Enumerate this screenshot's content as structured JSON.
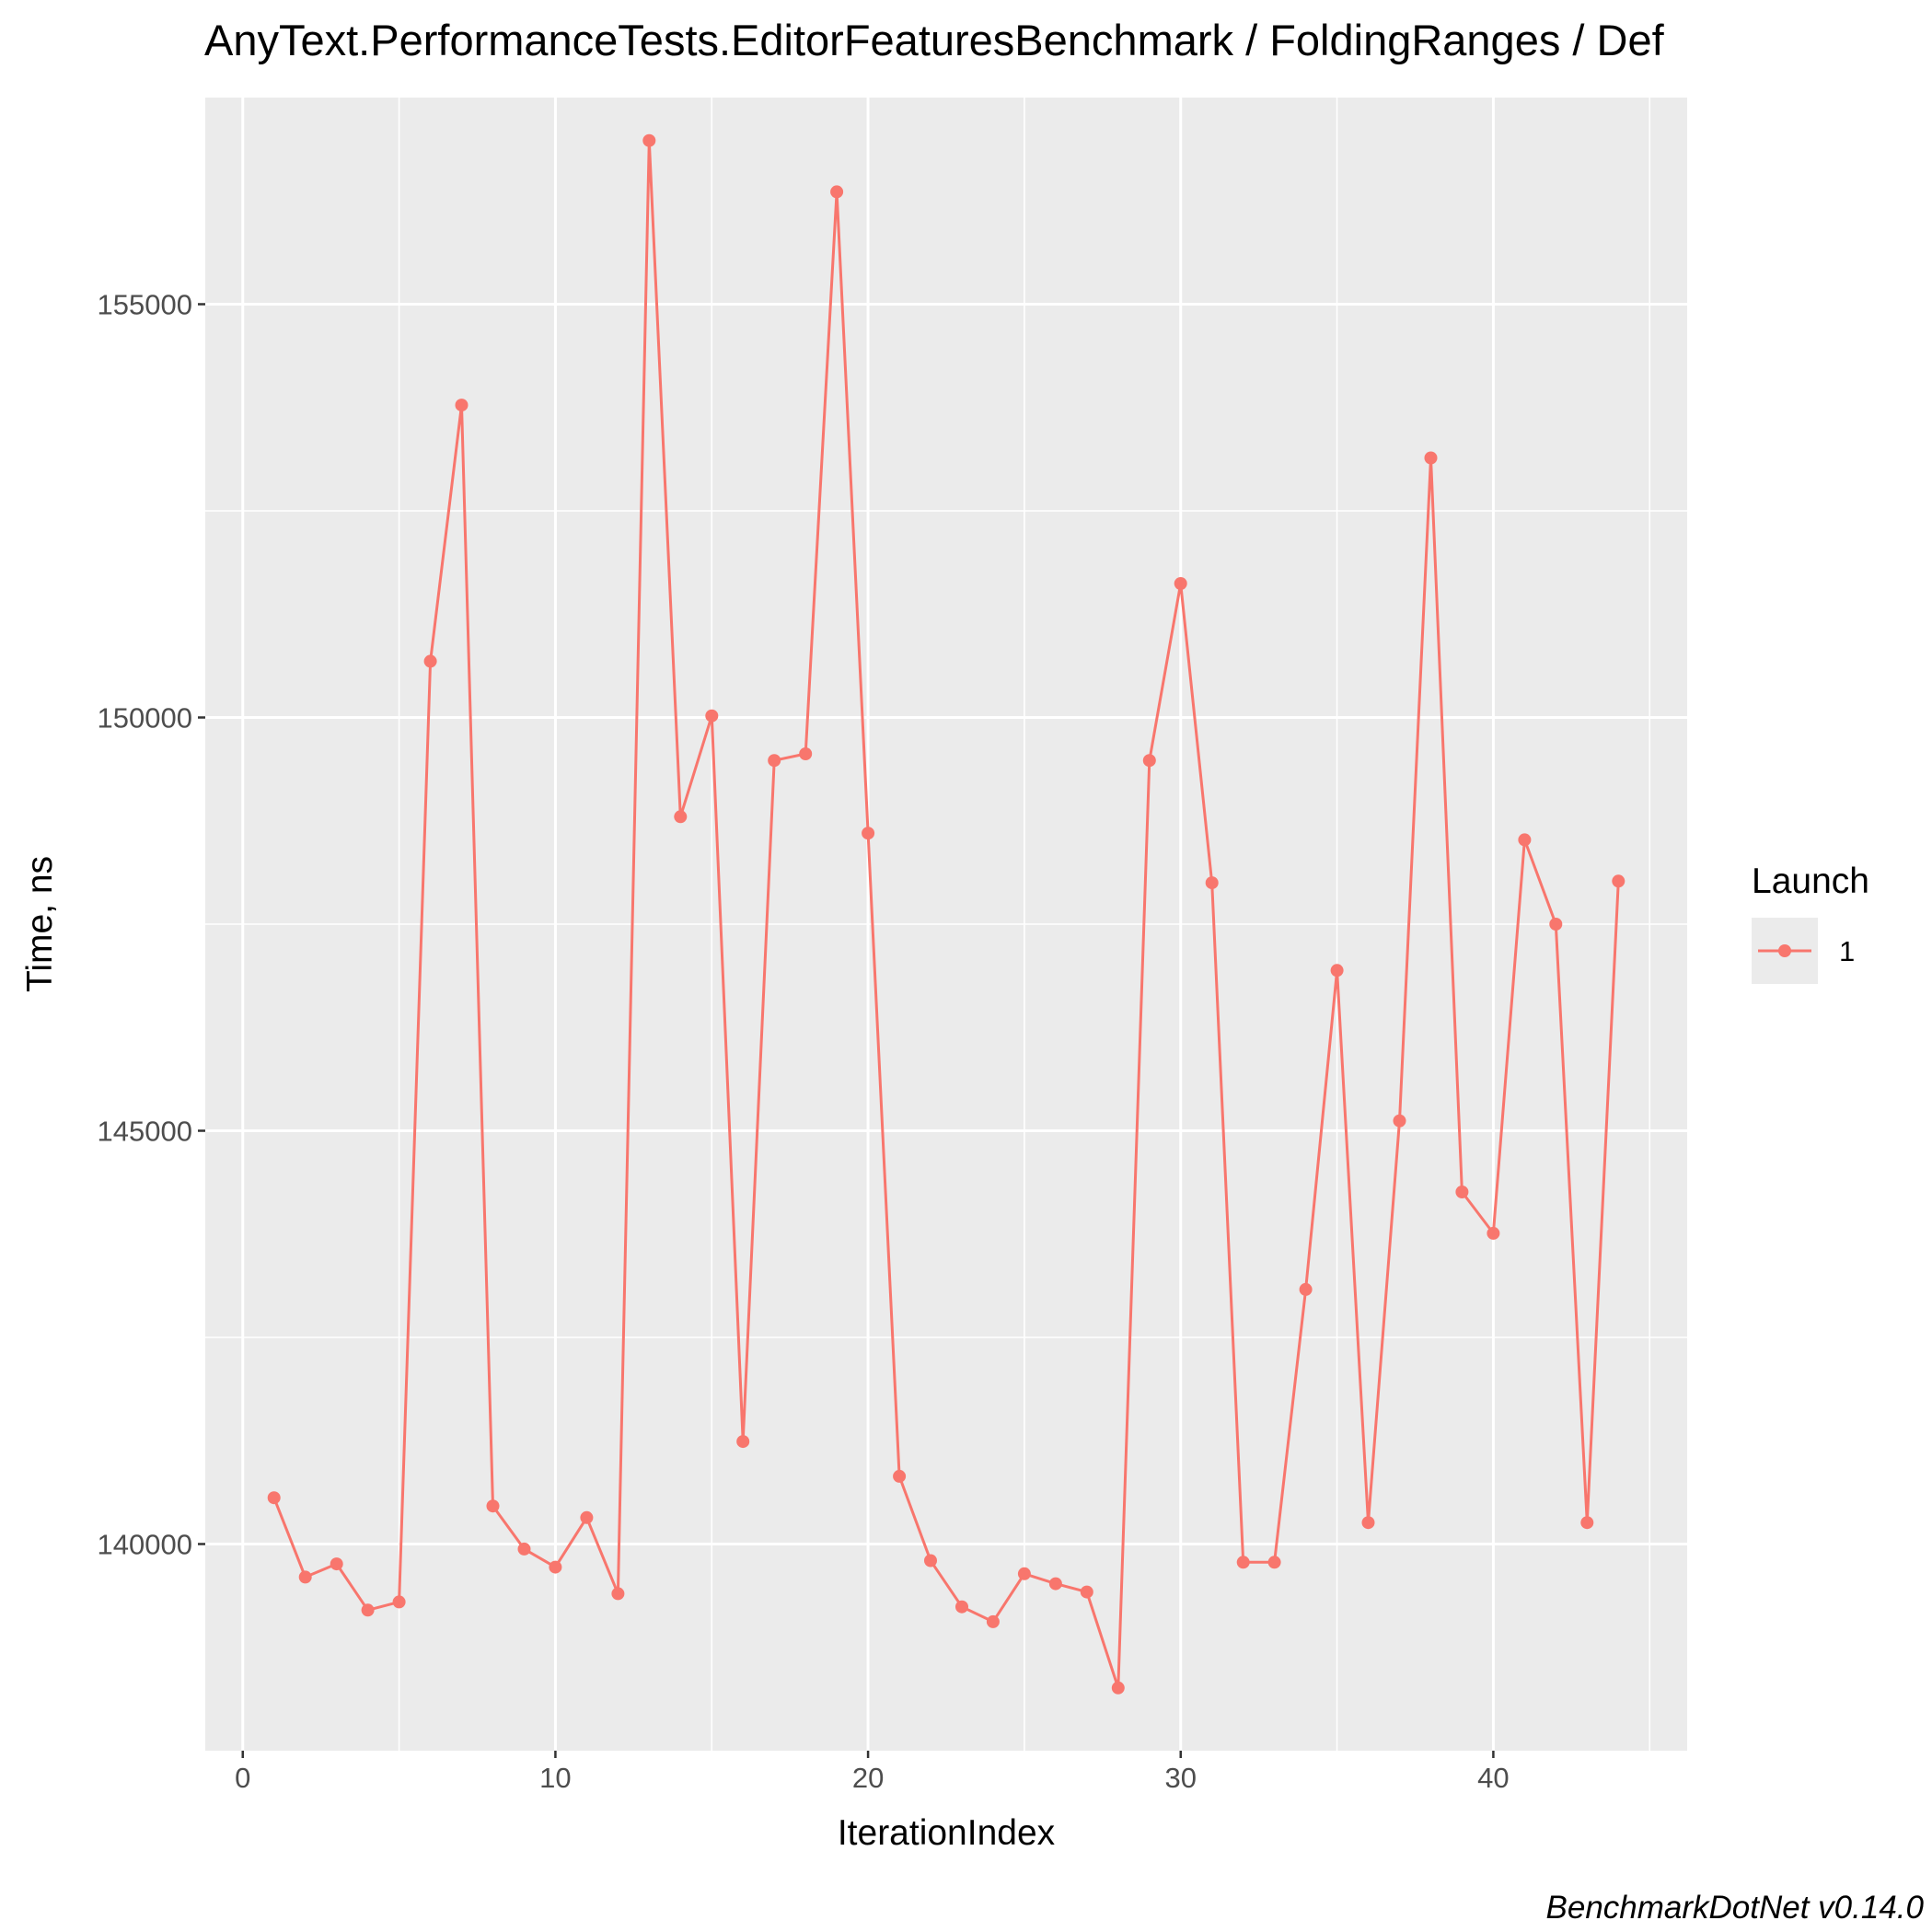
{
  "chart_data": {
    "type": "line",
    "title": "AnyText.PerformanceTests.EditorFeaturesBenchmark / FoldingRanges / Def",
    "xlabel": "IterationIndex",
    "ylabel": "Time, ns",
    "caption": "BenchmarkDotNet v0.14.0",
    "xlim": [
      -1.2,
      46.2
    ],
    "ylim": [
      137500,
      157500
    ],
    "x_ticks": [
      0,
      10,
      20,
      30,
      40
    ],
    "y_ticks": [
      140000,
      145000,
      150000,
      155000
    ],
    "grid": true,
    "legend": {
      "title": "Launch",
      "position": "right"
    },
    "series": [
      {
        "name": "1",
        "color": "#F8766D",
        "x": [
          1,
          2,
          3,
          4,
          5,
          6,
          7,
          8,
          9,
          10,
          11,
          12,
          13,
          14,
          15,
          16,
          17,
          18,
          19,
          20,
          21,
          22,
          23,
          24,
          25,
          26,
          27,
          28,
          29,
          30,
          31,
          32,
          33,
          34,
          35,
          36,
          37,
          38,
          39,
          40,
          41,
          42,
          43,
          44
        ],
        "values": [
          140560,
          139600,
          139760,
          139200,
          139300,
          150680,
          153780,
          140460,
          139940,
          139720,
          140320,
          139400,
          156980,
          148800,
          150020,
          141240,
          149480,
          149560,
          156360,
          148600,
          140820,
          139800,
          139240,
          139060,
          139640,
          139520,
          139420,
          138260,
          149480,
          151620,
          148000,
          139780,
          139780,
          143080,
          146940,
          140260,
          145120,
          153140,
          144260,
          143760,
          148520,
          147500,
          140260,
          148020
        ]
      }
    ]
  }
}
